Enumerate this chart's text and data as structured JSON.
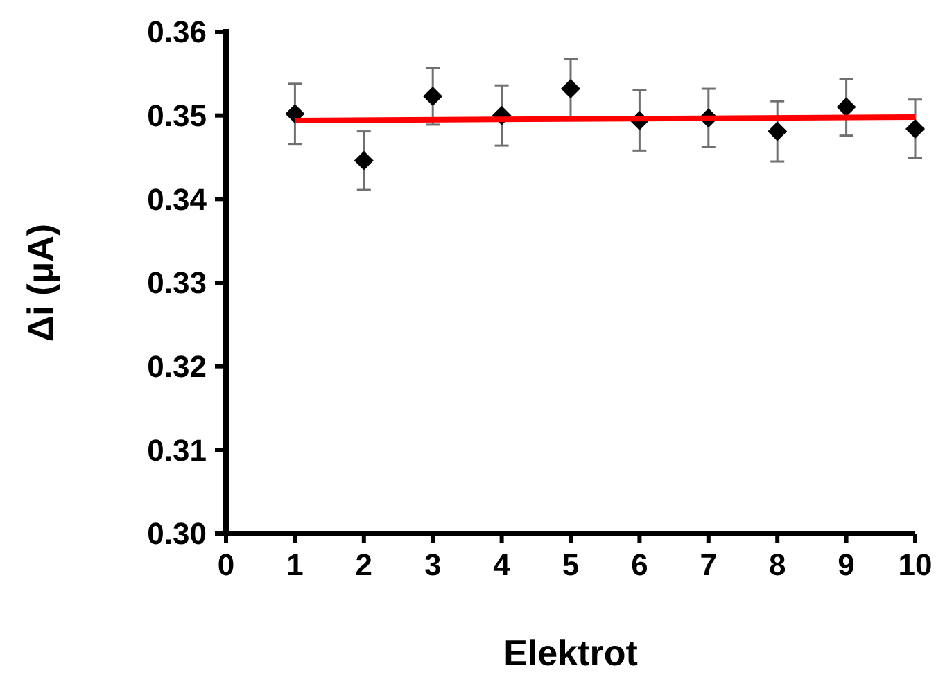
{
  "chart_data": {
    "type": "scatter",
    "xlabel": "Elektrot",
    "ylabel": "Δi (μA)",
    "xlim": [
      0,
      10
    ],
    "xticks": [
      0,
      1,
      2,
      3,
      4,
      5,
      6,
      7,
      8,
      9,
      10
    ],
    "ylim": [
      0.3,
      0.36
    ],
    "yticks": [
      {
        "value": 0.3,
        "label": "0.30"
      },
      0.31,
      0.32,
      0.33,
      0.34,
      0.35,
      {
        "value": 0.36,
        "label": "0.36"
      }
    ],
    "grid": false,
    "marker": "diamond",
    "series": [
      {
        "color": "#000000",
        "x": [
          1,
          2,
          3,
          4,
          5,
          6,
          7,
          8,
          9,
          10
        ],
        "values": [
          0.3502,
          0.3446,
          0.3523,
          0.35,
          0.3532,
          0.3494,
          0.3497,
          0.3481,
          0.351,
          0.3484
        ],
        "errors": [
          0.0036,
          0.0035,
          0.0034,
          0.0036,
          0.0036,
          0.0036,
          0.0035,
          0.0036,
          0.0034,
          0.0035
        ]
      },
      {
        "type": "line",
        "color": "#ff0000",
        "x": [
          1,
          10
        ],
        "values": [
          0.3494,
          0.3498
        ],
        "line_style": "solid",
        "marker": "none"
      }
    ]
  }
}
